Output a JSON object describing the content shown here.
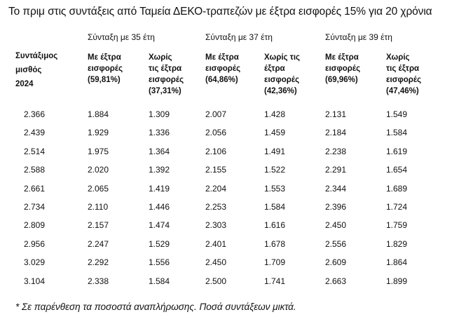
{
  "title": "Το πριμ στις συντάξεις από Ταμεία ΔΕΚΟ-τραπεζών με έξτρα εισφορές 15% για 20 χρόνια",
  "row_header": "Συντάξιμος\nμισθός\n2024",
  "groups": [
    {
      "label": "Σύνταξη με 35 έτη",
      "with_extra": "Με έξτρα\nεισφορές\n(59,81%)",
      "without_extra": "Χωρίς\nτις έξτρα\nεισφορές\n(37,31%)"
    },
    {
      "label": "Σύνταξη με 37 έτη",
      "with_extra": "Με έξτρα\nεισφορές\n(64,86%)",
      "without_extra": "Χωρίς τις\nέξτρα\nεισφορές\n(42,36%)"
    },
    {
      "label": "Σύνταξη με 39 έτη",
      "with_extra": "Με έξτρα\nεισφορές\n(69,96%)",
      "without_extra": "Χωρίς\nτις έξτρα\nεισφορές\n(47,46%)"
    }
  ],
  "rows": [
    [
      "2.366",
      "1.884",
      "1.309",
      "2.007",
      "1.428",
      "2.131",
      "1.549"
    ],
    [
      "2.439",
      "1.929",
      "1.336",
      "2.056",
      "1.459",
      "2.184",
      "1.584"
    ],
    [
      "2.514",
      "1.975",
      "1.364",
      "2.106",
      "1.491",
      "2.238",
      "1.619"
    ],
    [
      "2.588",
      "2.020",
      "1.392",
      "2.155",
      "1.522",
      "2.291",
      "1.654"
    ],
    [
      "2.661",
      "2.065",
      "1.419",
      "2.204",
      "1.553",
      "2.344",
      "1.689"
    ],
    [
      "2.734",
      "2.110",
      "1.446",
      "2.253",
      "1.584",
      "2.396",
      "1.724"
    ],
    [
      "2.809",
      "2.157",
      "1.474",
      "2.303",
      "1.616",
      "2.450",
      "1.759"
    ],
    [
      "2.956",
      "2.247",
      "1.529",
      "2.401",
      "1.678",
      "2.556",
      "1.829"
    ],
    [
      "3.029",
      "2.292",
      "1.556",
      "2.450",
      "1.709",
      "2.609",
      "1.864"
    ],
    [
      "3.104",
      "2.338",
      "1.584",
      "2.500",
      "1.741",
      "2.663",
      "1.899"
    ]
  ],
  "footnote": "* Σε παρένθεση τα ποσοστά αναπλήρωσης. Ποσά συντάξεων μικτά."
}
